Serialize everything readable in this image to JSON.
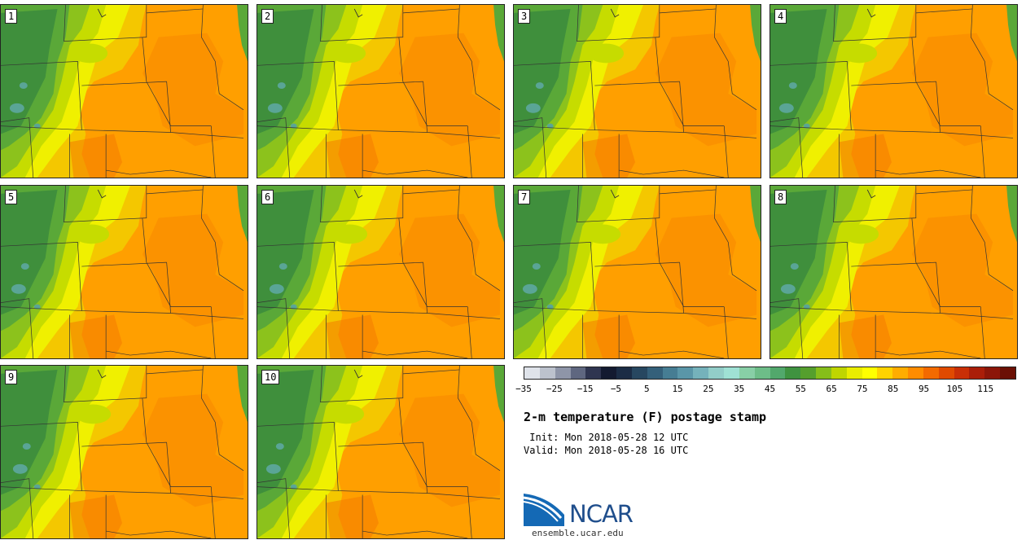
{
  "panels": [
    {
      "label": "1"
    },
    {
      "label": "2"
    },
    {
      "label": "3"
    },
    {
      "label": "4"
    },
    {
      "label": "5"
    },
    {
      "label": "6"
    },
    {
      "label": "7"
    },
    {
      "label": "8"
    },
    {
      "label": "9"
    },
    {
      "label": "10"
    }
  ],
  "colorbar": {
    "colors": [
      "#dfe3ea",
      "#bcc2cd",
      "#8e95a8",
      "#5f6780",
      "#2f3550",
      "#131a30",
      "#1b2c45",
      "#274760",
      "#34607a",
      "#467d93",
      "#5a96a8",
      "#75b2bb",
      "#92cdc8",
      "#9fe1d4",
      "#88cfa6",
      "#6dbd88",
      "#52a86c",
      "#3f9340",
      "#559f2d",
      "#86be1a",
      "#bfd500",
      "#eaed00",
      "#ffff00",
      "#ffd300",
      "#ffad00",
      "#ff8c00",
      "#f36a00",
      "#e04a00",
      "#c92f06",
      "#aa1e08",
      "#8c1608",
      "#6b1005"
    ],
    "ticks": [
      "−35",
      "−25",
      "−15",
      "−5",
      "5",
      "15",
      "25",
      "35",
      "45",
      "55",
      "65",
      "75",
      "85",
      "95",
      "105",
      "115"
    ]
  },
  "title": "2-m temperature (F) postage stamp",
  "init": " Init: Mon 2018-05-28 12 UTC",
  "valid": "Valid: Mon 2018-05-28 16 UTC",
  "logo": {
    "text": "NCAR",
    "url": "ensemble.ucar.edu"
  },
  "map_colors": {
    "background": "#f4c700",
    "warm": "#ff9f00",
    "hot": "#f47a00",
    "yellow": "#f0f000",
    "yellowgreen": "#c6dc00",
    "lightgreen": "#8cc21c",
    "green": "#5aa838",
    "darkgreen": "#3f8f3c",
    "teal": "#5aa596",
    "border": "#333333"
  }
}
